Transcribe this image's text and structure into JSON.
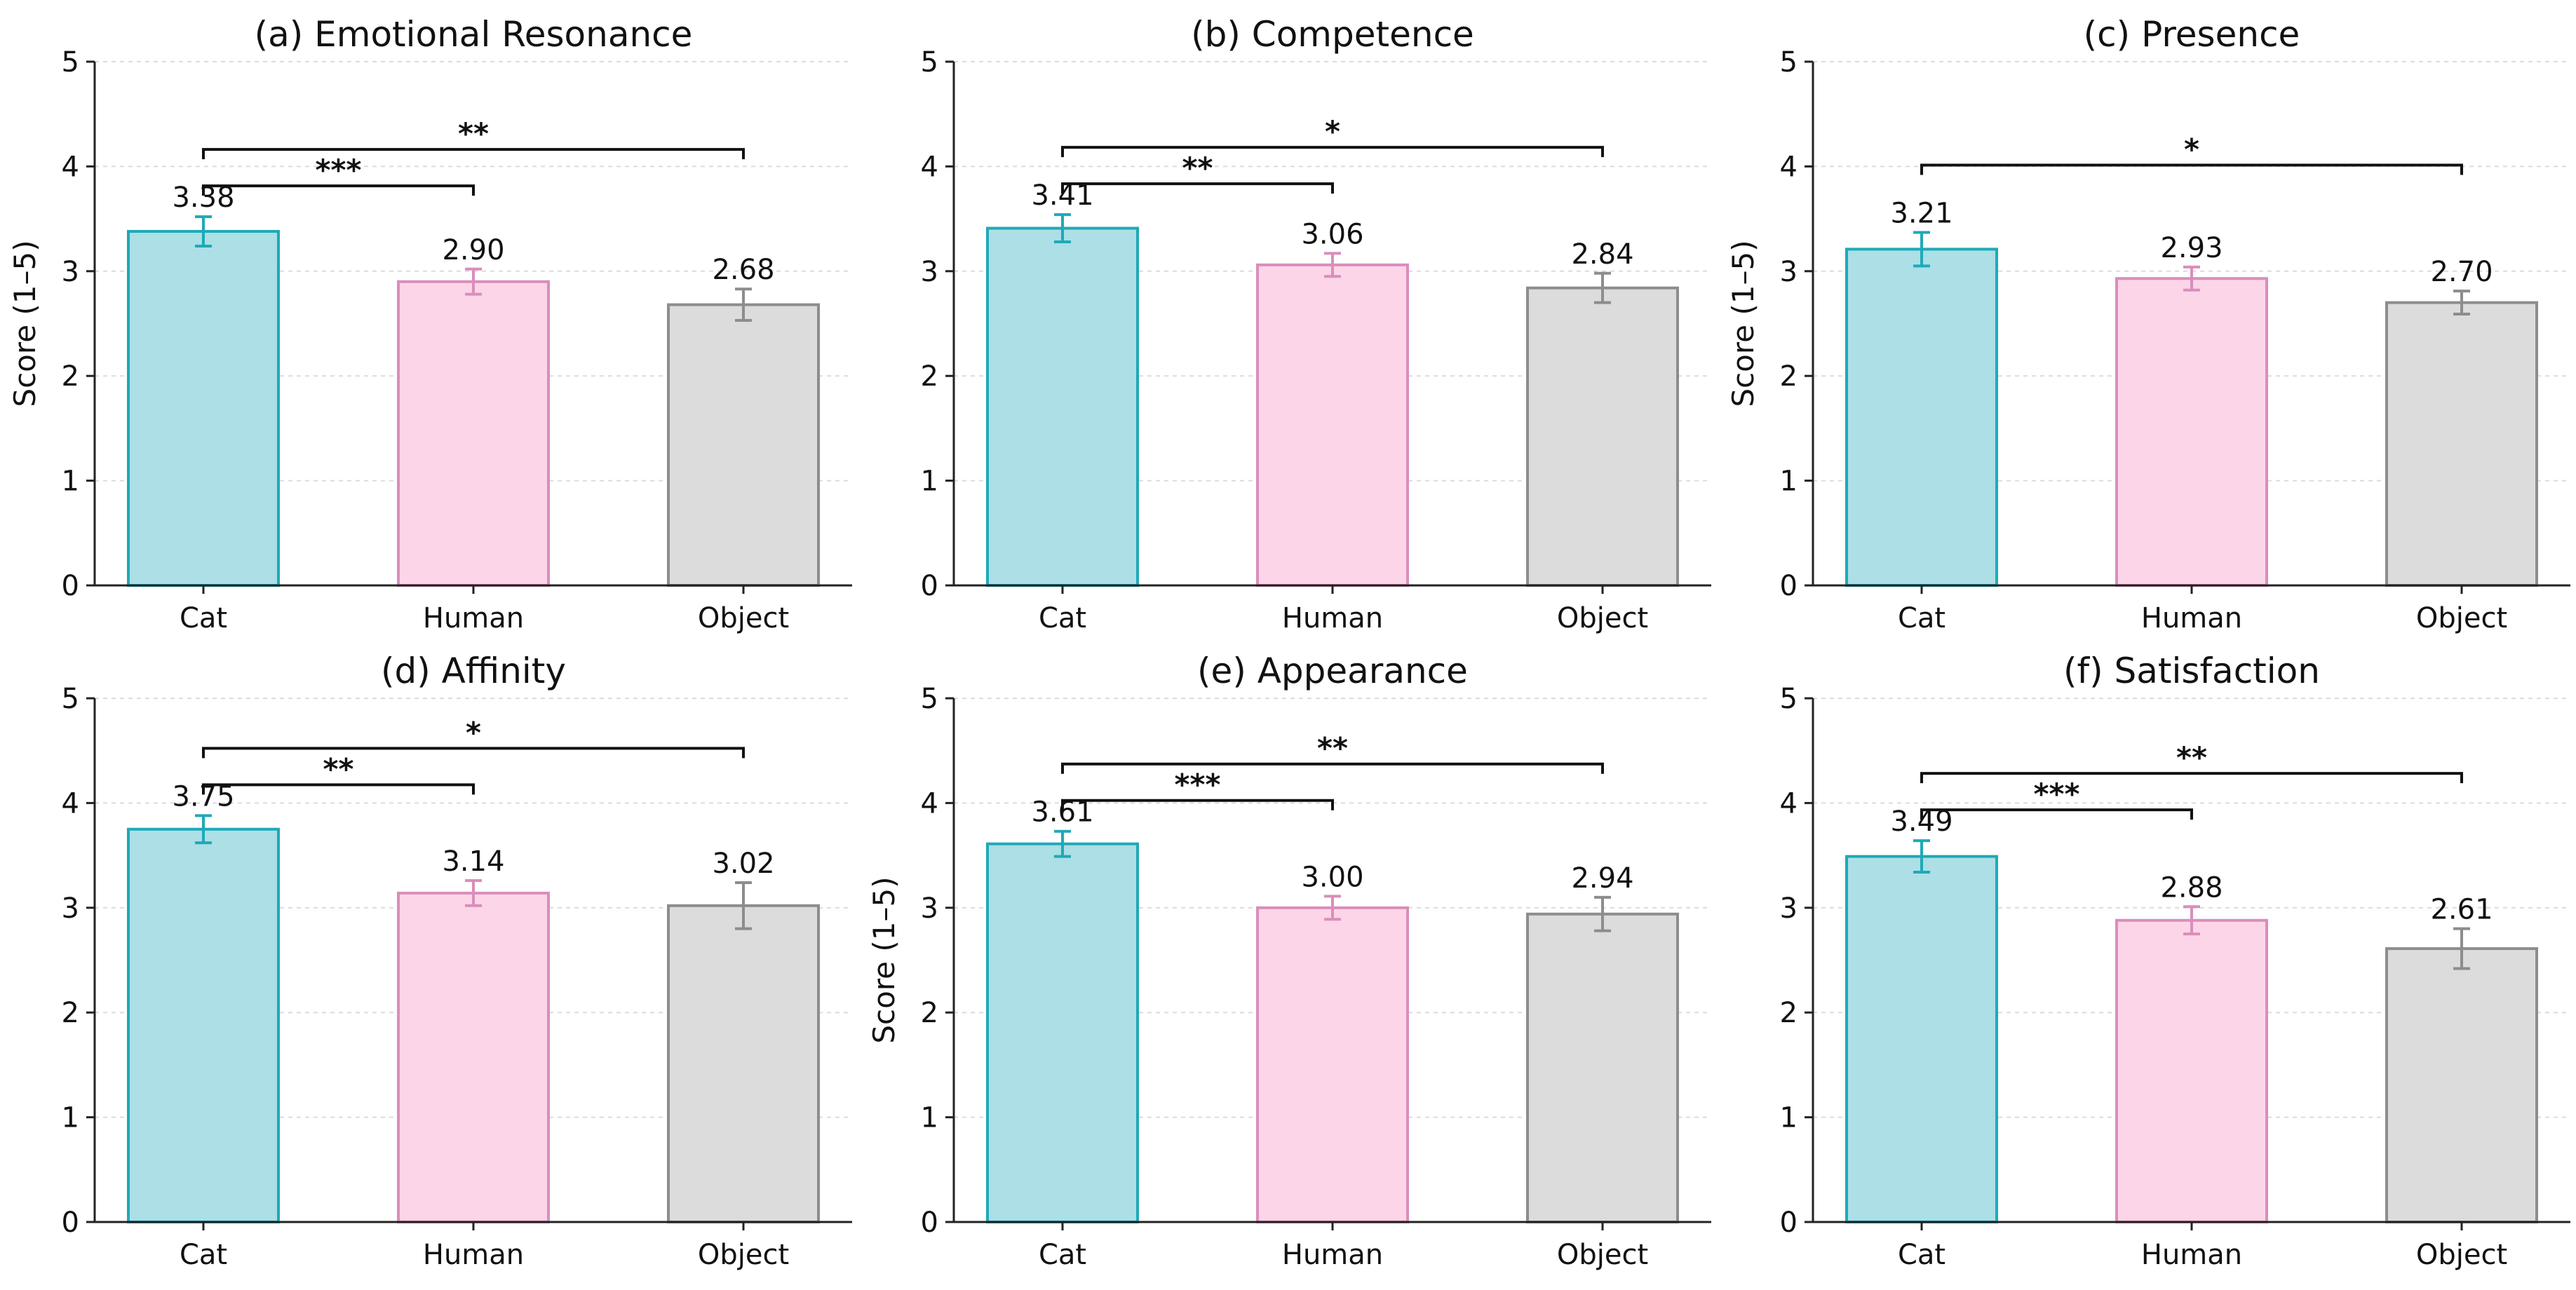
{
  "chart_data": [
    {
      "type": "bar",
      "title": "(a) Emotional Resonance",
      "ylabel": "Score (1–5)",
      "categories": [
        "Cat",
        "Human",
        "Object"
      ],
      "values": [
        3.38,
        2.9,
        2.68
      ],
      "value_labels": [
        "3.38",
        "2.90",
        "2.68"
      ],
      "errors": [
        0.14,
        0.12,
        0.15
      ],
      "ylim": [
        0,
        5
      ],
      "yticks": [
        "0",
        "1",
        "2",
        "3",
        "4",
        "5"
      ],
      "grid": true,
      "significance": [
        {
          "from": 0,
          "to": 1,
          "label": "***"
        },
        {
          "from": 0,
          "to": 2,
          "label": "**"
        }
      ]
    },
    {
      "type": "bar",
      "title": "(b) Competence",
      "ylabel": "",
      "categories": [
        "Cat",
        "Human",
        "Object"
      ],
      "values": [
        3.41,
        3.06,
        2.84
      ],
      "value_labels": [
        "3.41",
        "3.06",
        "2.84"
      ],
      "errors": [
        0.13,
        0.11,
        0.14
      ],
      "ylim": [
        0,
        5
      ],
      "yticks": [
        "0",
        "1",
        "2",
        "3",
        "4",
        "5"
      ],
      "grid": true,
      "significance": [
        {
          "from": 0,
          "to": 1,
          "label": "**"
        },
        {
          "from": 0,
          "to": 2,
          "label": "*"
        }
      ]
    },
    {
      "type": "bar",
      "title": "(c) Presence",
      "ylabel": "Score (1–5)",
      "categories": [
        "Cat",
        "Human",
        "Object"
      ],
      "values": [
        3.21,
        2.93,
        2.7
      ],
      "value_labels": [
        "3.21",
        "2.93",
        "2.70"
      ],
      "errors": [
        0.16,
        0.11,
        0.11
      ],
      "ylim": [
        0,
        5
      ],
      "yticks": [
        "0",
        "1",
        "2",
        "3",
        "4",
        "5"
      ],
      "grid": true,
      "significance": [
        {
          "from": 0,
          "to": 2,
          "label": "*"
        }
      ]
    },
    {
      "type": "bar",
      "title": "(d) Affinity",
      "ylabel": "",
      "categories": [
        "Cat",
        "Human",
        "Object"
      ],
      "values": [
        3.75,
        3.14,
        3.02
      ],
      "value_labels": [
        "3.75",
        "3.14",
        "3.02"
      ],
      "errors": [
        0.13,
        0.12,
        0.22
      ],
      "ylim": [
        0,
        5
      ],
      "yticks": [
        "0",
        "1",
        "2",
        "3",
        "4",
        "5"
      ],
      "grid": true,
      "significance": [
        {
          "from": 0,
          "to": 1,
          "label": "**"
        },
        {
          "from": 0,
          "to": 2,
          "label": "*"
        }
      ]
    },
    {
      "type": "bar",
      "title": "(e) Appearance",
      "ylabel": "Score (1–5)",
      "categories": [
        "Cat",
        "Human",
        "Object"
      ],
      "values": [
        3.61,
        3.0,
        2.94
      ],
      "value_labels": [
        "3.61",
        "3.00",
        "2.94"
      ],
      "errors": [
        0.12,
        0.11,
        0.16
      ],
      "ylim": [
        0,
        5
      ],
      "yticks": [
        "0",
        "1",
        "2",
        "3",
        "4",
        "5"
      ],
      "grid": true,
      "significance": [
        {
          "from": 0,
          "to": 1,
          "label": "***"
        },
        {
          "from": 0,
          "to": 2,
          "label": "**"
        }
      ]
    },
    {
      "type": "bar",
      "title": "(f) Satisfaction",
      "ylabel": "",
      "categories": [
        "Cat",
        "Human",
        "Object"
      ],
      "values": [
        3.49,
        2.88,
        2.61
      ],
      "value_labels": [
        "3.49",
        "2.88",
        "2.61"
      ],
      "errors": [
        0.15,
        0.13,
        0.19
      ],
      "ylim": [
        0,
        5
      ],
      "yticks": [
        "0",
        "1",
        "2",
        "3",
        "4",
        "5"
      ],
      "grid": true,
      "significance": [
        {
          "from": 0,
          "to": 1,
          "label": "***"
        },
        {
          "from": 0,
          "to": 2,
          "label": "**"
        }
      ]
    }
  ],
  "colors": {
    "cat_fill": "#acdfe6",
    "cat_edge": "#1fa9b8",
    "human_fill": "#fdd5e8",
    "human_edge": "#d98ebb",
    "object_fill": "#dcdcdc",
    "object_edge": "#8d8d8d"
  }
}
